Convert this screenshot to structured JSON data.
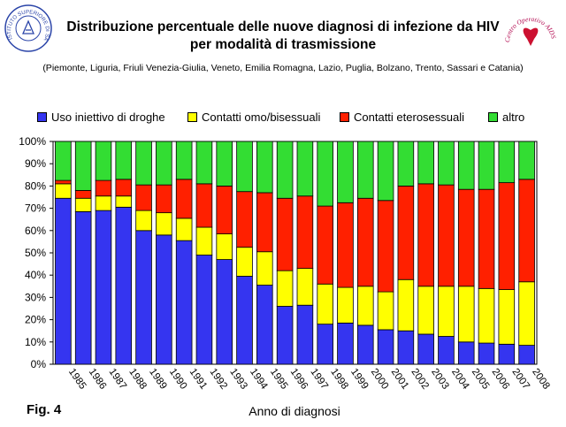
{
  "header": {
    "title_line1": "Distribuzione percentuale delle nuove diagnosi di infezione da HIV",
    "title_line2": "per modalità di trasmissione",
    "subtitle": "(Piemonte, Liguria, Friuli Venezia-Giulia, Veneto, Emilia Romagna, Lazio,  Puglia, Bolzano, Trento, Sassari e Catania)"
  },
  "logos": {
    "left_text": "ISTITUTO SUPERIORE DI SANITÀ",
    "right_text": "Centro Operativo AIDS"
  },
  "figure_label": "Fig. 4",
  "colors": {
    "Uso iniettivo di droghe": "#3535f0",
    "Contatti omo/bisessuali": "#ffff00",
    "Contatti eterosessuali": "#ff2000",
    "altro": "#33dd33"
  },
  "chart_data": {
    "type": "bar",
    "stacked": true,
    "xlabel": "Anno di diagnosi",
    "ylabel": "",
    "ylim": [
      0,
      100
    ],
    "yticks": [
      "0%",
      "10%",
      "20%",
      "30%",
      "40%",
      "50%",
      "60%",
      "70%",
      "80%",
      "90%",
      "100%"
    ],
    "grid": false,
    "legend_position": "top",
    "categories": [
      "1985",
      "1986",
      "1987",
      "1988",
      "1989",
      "1990",
      "1991",
      "1992",
      "1993",
      "1994",
      "1995",
      "1996",
      "1997",
      "1998",
      "1999",
      "2000",
      "2001",
      "2002",
      "2003",
      "2004",
      "2005",
      "2006",
      "2007",
      "2008"
    ],
    "series": [
      {
        "name": "Uso iniettivo di droghe",
        "values": [
          74.5,
          68.5,
          69,
          70.5,
          60,
          58,
          55.5,
          49,
          47,
          39.5,
          35.5,
          26,
          26.5,
          18,
          18.5,
          17.5,
          15.5,
          15,
          13.5,
          12.5,
          10,
          9.5,
          9,
          8.5
        ]
      },
      {
        "name": "Contatti omo/bisessuali",
        "values": [
          6.5,
          6,
          6.5,
          5,
          9,
          10,
          10,
          12.5,
          11.5,
          13,
          15,
          16,
          16.5,
          18,
          16,
          17.5,
          17,
          23,
          21.5,
          22.5,
          25,
          24.5,
          24.5,
          28.5
        ]
      },
      {
        "name": "Contatti eterosessuali",
        "values": [
          1.5,
          3.5,
          7,
          7.5,
          11.5,
          12.5,
          17.5,
          19.5,
          21.5,
          25,
          26.5,
          32.5,
          32.5,
          35,
          38,
          39.5,
          41,
          42,
          46,
          45.5,
          43.5,
          44.5,
          48,
          46
        ]
      },
      {
        "name": "altro",
        "values": [
          17.5,
          22,
          17.5,
          17,
          19.5,
          19.5,
          17,
          19,
          20,
          22.5,
          23,
          25.5,
          24.5,
          29,
          27.5,
          25.5,
          26.5,
          20,
          19,
          19.5,
          21.5,
          21.5,
          18.5,
          17
        ]
      }
    ]
  }
}
